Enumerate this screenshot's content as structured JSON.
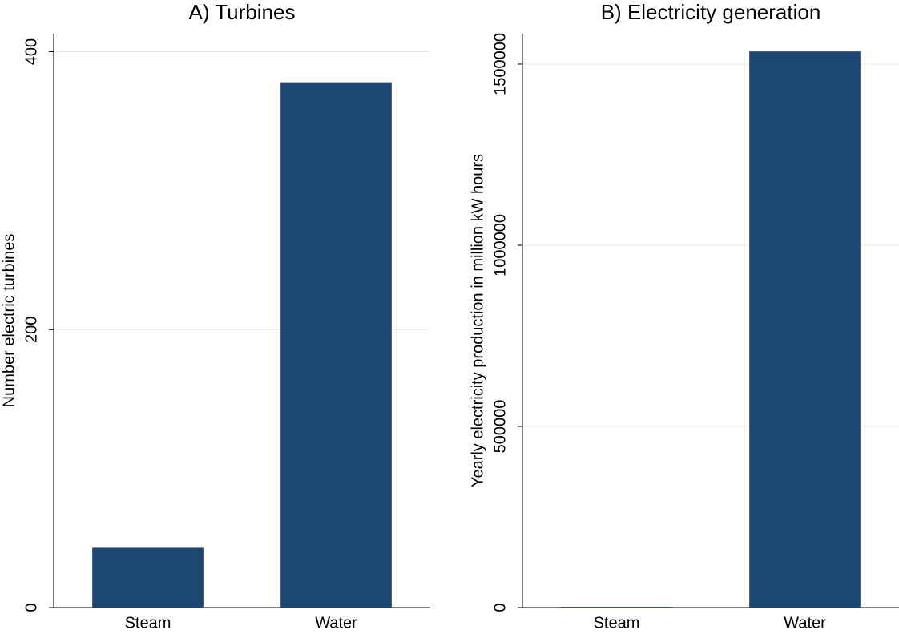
{
  "chart_data": [
    {
      "type": "bar",
      "title": "A) Turbines",
      "y_label": "Number electric turbines",
      "categories": [
        "Steam",
        "Water"
      ],
      "values": [
        43,
        378
      ],
      "color": "#1c4770",
      "ylim": [
        0,
        413
      ],
      "yticks": [
        0,
        200,
        400
      ],
      "grid": true
    },
    {
      "type": "bar",
      "title": "B) Electricity generation",
      "y_label": "Yearly electricity production in million kW hours",
      "categories": [
        "Steam",
        "Water"
      ],
      "values": [
        2000,
        1535000
      ],
      "color": "#1c4770",
      "ylim": [
        0,
        1584000
      ],
      "yticks": [
        0,
        500000,
        1000000,
        1500000
      ],
      "grid": true
    }
  ]
}
